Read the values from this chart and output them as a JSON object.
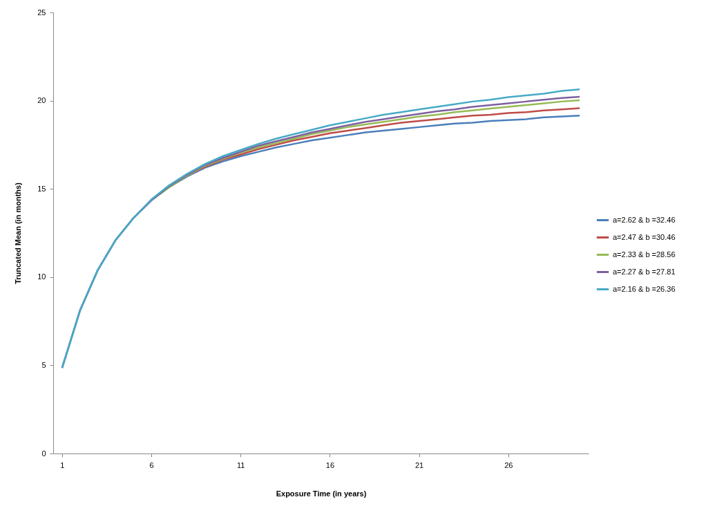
{
  "chart_data": {
    "type": "line",
    "xlabel": "Exposure Time (in years)",
    "ylabel": "Truncated Mean (in months)",
    "x": [
      1,
      2,
      3,
      4,
      5,
      6,
      7,
      8,
      9,
      10,
      11,
      12,
      13,
      14,
      15,
      16,
      17,
      18,
      19,
      20,
      21,
      22,
      23,
      24,
      25,
      26,
      27,
      28,
      29,
      30
    ],
    "xlim": [
      0.5,
      30.5
    ],
    "xticks": [
      1,
      6,
      11,
      16,
      21,
      26
    ],
    "ylim": [
      0,
      25
    ],
    "yticks": [
      0,
      5,
      10,
      15,
      20,
      25
    ],
    "grid": false,
    "legend": "right",
    "marker": "none",
    "line_style": "solid",
    "series": [
      {
        "name": "a=2.62 & b =32.46",
        "color": "#4a7ebb",
        "values": [
          4.85,
          8.1,
          10.4,
          12.1,
          13.35,
          14.35,
          15.1,
          15.7,
          16.2,
          16.55,
          16.85,
          17.1,
          17.35,
          17.55,
          17.75,
          17.9,
          18.05,
          18.2,
          18.3,
          18.4,
          18.5,
          18.6,
          18.7,
          18.75,
          18.85,
          18.9,
          18.95,
          19.05,
          19.1,
          19.15
        ]
      },
      {
        "name": "a=2.47 & b =30.46",
        "color": "#be4b48",
        "values": [
          null,
          null,
          null,
          null,
          null,
          null,
          15.1,
          15.75,
          16.25,
          16.65,
          16.95,
          17.25,
          17.5,
          17.75,
          17.95,
          18.15,
          18.3,
          18.45,
          18.6,
          18.75,
          18.85,
          18.95,
          19.05,
          19.15,
          19.2,
          19.3,
          19.35,
          19.45,
          19.5,
          19.57
        ]
      },
      {
        "name": "a=2.33 & b =28.56",
        "color": "#98b954",
        "values": [
          null,
          null,
          null,
          null,
          null,
          14.35,
          15.1,
          15.75,
          16.3,
          16.7,
          17.05,
          17.35,
          17.6,
          17.85,
          18.1,
          18.3,
          18.5,
          18.65,
          18.8,
          18.95,
          19.1,
          19.2,
          19.35,
          19.45,
          19.55,
          19.65,
          19.75,
          19.85,
          19.95,
          20.02
        ]
      },
      {
        "name": "a=2.27 & b =27.81",
        "color": "#7d60a0",
        "values": [
          4.85,
          8.1,
          10.4,
          12.1,
          13.35,
          14.35,
          15.15,
          15.8,
          16.35,
          16.75,
          17.1,
          17.45,
          17.7,
          17.95,
          18.2,
          18.4,
          18.6,
          18.8,
          18.95,
          19.1,
          19.25,
          19.4,
          19.5,
          19.65,
          19.75,
          19.85,
          19.95,
          20.05,
          20.15,
          20.22
        ]
      },
      {
        "name": "a=2.16 & b =26.36",
        "color": "#46aac5",
        "values": [
          4.85,
          8.1,
          10.4,
          12.1,
          13.35,
          14.4,
          15.2,
          15.85,
          16.4,
          16.85,
          17.2,
          17.55,
          17.85,
          18.1,
          18.35,
          18.6,
          18.8,
          19.0,
          19.2,
          19.35,
          19.5,
          19.65,
          19.8,
          19.95,
          20.05,
          20.2,
          20.3,
          20.4,
          20.55,
          20.64
        ]
      }
    ]
  }
}
